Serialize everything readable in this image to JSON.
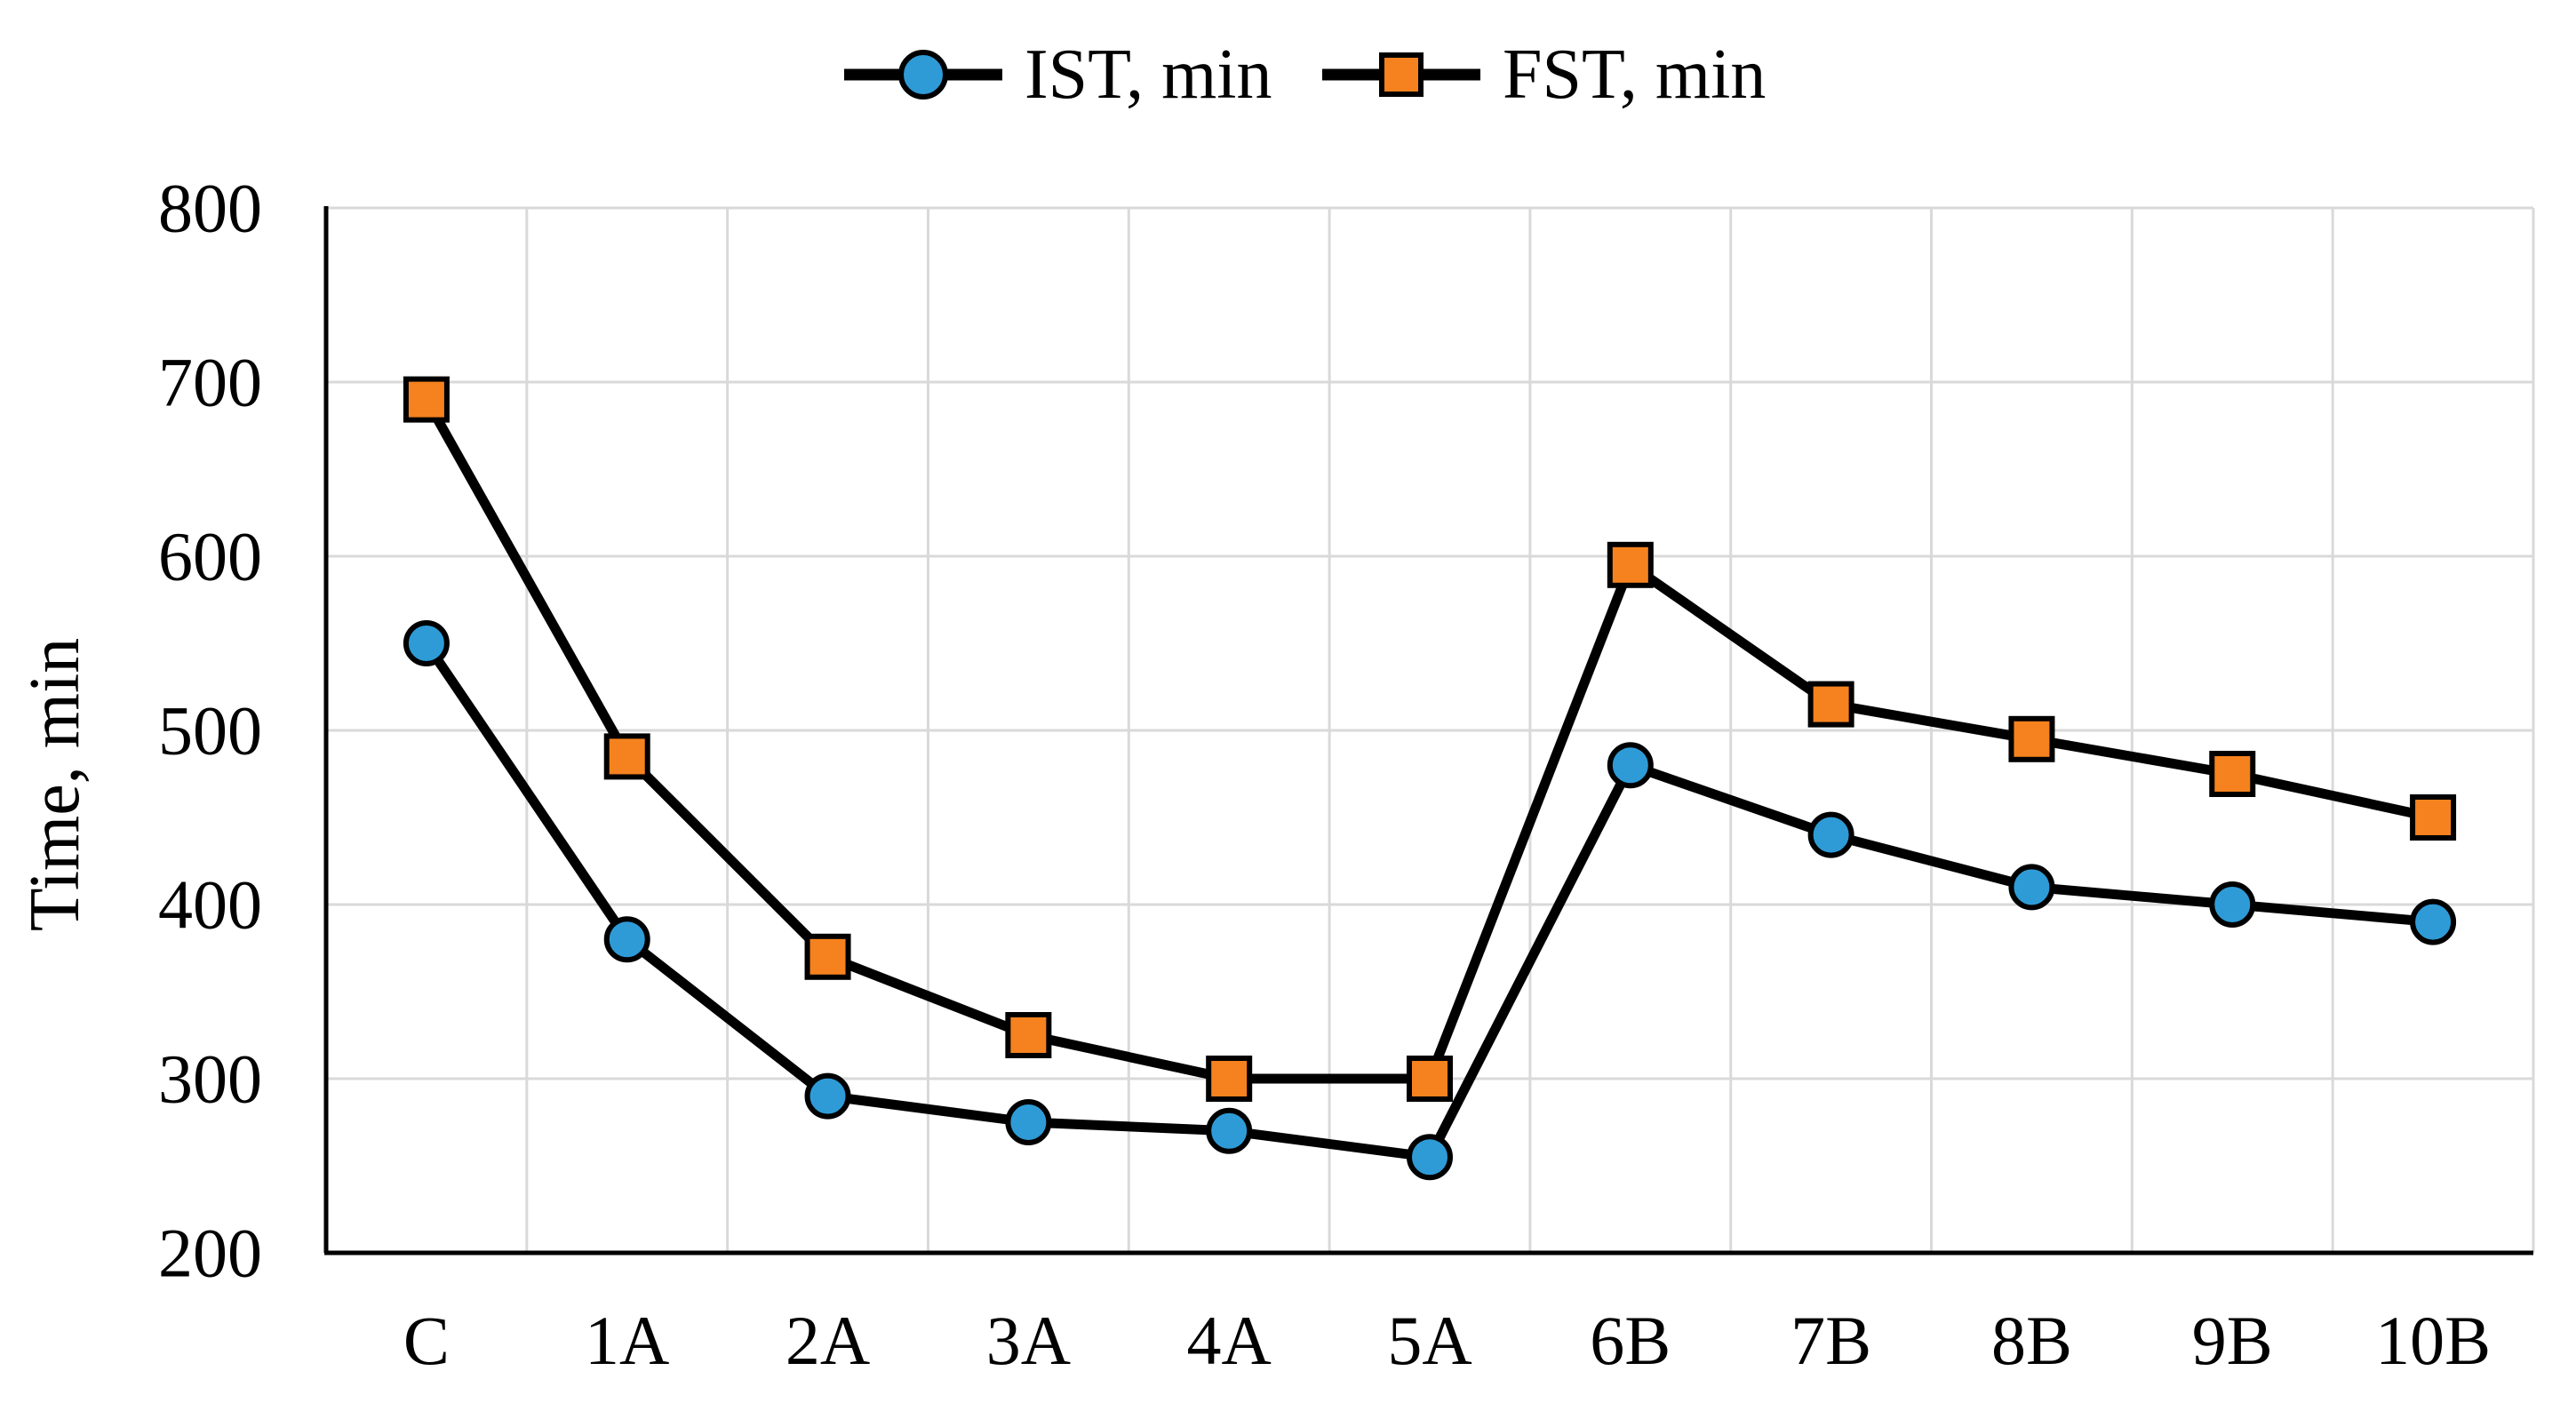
{
  "figure": {
    "background": "#FFFFFF"
  },
  "chart_data": {
    "type": "line",
    "title": "",
    "xlabel": "",
    "ylabel": "Time, min",
    "categories": [
      "C",
      "1A",
      "2A",
      "3A",
      "4A",
      "5A",
      "6B",
      "7B",
      "8B",
      "9B",
      "10B"
    ],
    "series": [
      {
        "name": "IST, min",
        "marker": "circle",
        "marker_color": "#2E9BD7",
        "line_color": "#000000",
        "values": [
          550,
          380,
          290,
          275,
          270,
          255,
          480,
          440,
          410,
          400,
          390
        ]
      },
      {
        "name": "FST, min",
        "marker": "square",
        "marker_color": "#F5821E",
        "line_color": "#000000",
        "values": [
          690,
          485,
          370,
          325,
          300,
          300,
          595,
          515,
          495,
          475,
          450
        ]
      }
    ],
    "ylim": [
      200,
      800
    ],
    "ytick_step": 100,
    "yticks": [
      200,
      300,
      400,
      500,
      600,
      700,
      800
    ],
    "grid": true,
    "legend_position": "top",
    "colors": {
      "grid": "#D9D9D9",
      "axis": "#000000",
      "text": "#000000",
      "background": "#FFFFFF"
    }
  }
}
